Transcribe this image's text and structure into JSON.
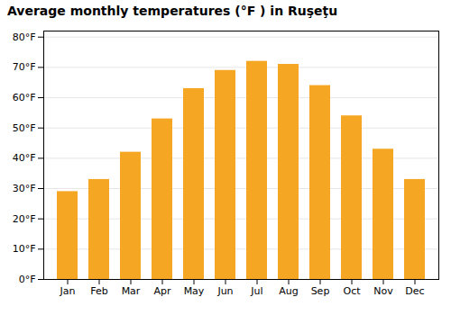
{
  "chart_data": {
    "type": "bar",
    "title": "Average monthly temperatures (°F ) in Ruşeţu",
    "categories": [
      "Jan",
      "Feb",
      "Mar",
      "Apr",
      "May",
      "Jun",
      "Jul",
      "Aug",
      "Sep",
      "Oct",
      "Nov",
      "Dec"
    ],
    "values": [
      29,
      33,
      42,
      53,
      63,
      69,
      72,
      71,
      64,
      54,
      43,
      33
    ],
    "color": "#F5A623",
    "ylim": [
      0,
      82
    ],
    "yticks": [
      {
        "value": 0,
        "label": "0°F"
      },
      {
        "value": 10,
        "label": "10°F"
      },
      {
        "value": 20,
        "label": "20°F"
      },
      {
        "value": 30,
        "label": "30°F"
      },
      {
        "value": 40,
        "label": "40°F"
      },
      {
        "value": 50,
        "label": "50°F"
      },
      {
        "value": 60,
        "label": "60°F"
      },
      {
        "value": 70,
        "label": "70°F"
      },
      {
        "value": 80,
        "label": "80°F"
      }
    ],
    "grid": true
  }
}
